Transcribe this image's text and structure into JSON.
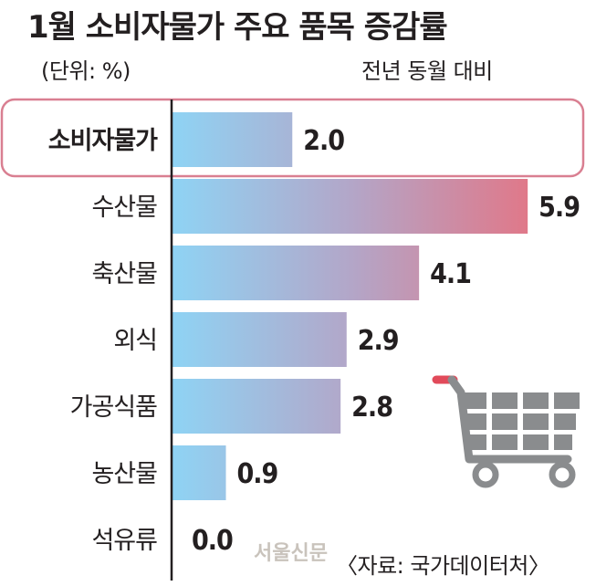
{
  "title": "1월 소비자물가 주요 품목 증감률",
  "unit_label": "(단위: %)",
  "series_label": "전년 동월 대비",
  "source": "〈자료: 국가데이터처〉",
  "watermark": "서울신문",
  "colors": {
    "bar_start": "#8fd3f4",
    "bar_mid": "#b3a6c8",
    "bar_end": "#e07889",
    "highlight_border": "#d97f91",
    "axis": "#231f20",
    "cart_body": "#8a8c8e",
    "cart_handle": "#e14a5a"
  },
  "decoration": {
    "icon": "shopping-cart-icon"
  },
  "chart_data": {
    "type": "bar",
    "orientation": "horizontal",
    "title": "1월 소비자물가 주요 품목 증감률",
    "xlabel": "",
    "ylabel": "",
    "xlim": [
      0,
      6.2
    ],
    "grid": false,
    "highlight": "소비자물가",
    "categories": [
      "소비자물가",
      "수산물",
      "축산물",
      "외식",
      "가공식품",
      "농산물",
      "석유류"
    ],
    "values": [
      2.0,
      5.9,
      4.1,
      2.9,
      2.8,
      0.9,
      0.0
    ],
    "value_labels": [
      "2.0",
      "5.9",
      "4.1",
      "2.9",
      "2.8",
      "0.9",
      "0.0"
    ]
  }
}
